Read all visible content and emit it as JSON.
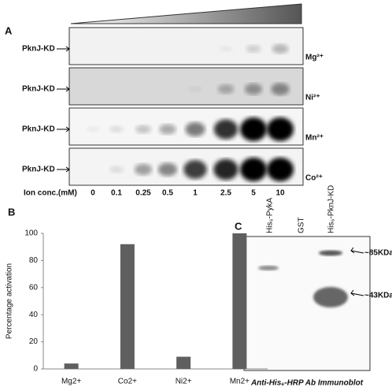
{
  "panel_a": {
    "label": "A",
    "rows": [
      {
        "protein": "PknJ-KD",
        "ion": "Mg²⁺"
      },
      {
        "protein": "PknJ-KD",
        "ion": "Ni²⁺"
      },
      {
        "protein": "PknJ-KD",
        "ion": "Mn²⁺"
      },
      {
        "protein": "PknJ-KD",
        "ion": "Co²⁺"
      }
    ],
    "lane_title": "Ion conc.(mM)",
    "lanes": [
      "0",
      "0.1",
      "0.25",
      "0.5",
      "1",
      "2.5",
      "5",
      "10"
    ]
  },
  "chart_data": {
    "type": "bar",
    "label": "B",
    "ylabel": "Percentage activation",
    "categories": [
      "Mg2+",
      "Co2+",
      "Ni2+",
      "Mn2+"
    ],
    "values": [
      4,
      92,
      9,
      100
    ],
    "color": "#5f5f5f",
    "ylim": [
      0,
      100
    ],
    "yticks": [
      0,
      20,
      40,
      60,
      80,
      100
    ]
  },
  "panel_c": {
    "label": "C",
    "lanes": [
      "His₆-PykA",
      "GST",
      "His₆-PknJ-KD"
    ],
    "markers": [
      "~85KDa",
      "~43KDa"
    ],
    "caption": "Anti-His₆-HRP Ab Immunoblot"
  }
}
